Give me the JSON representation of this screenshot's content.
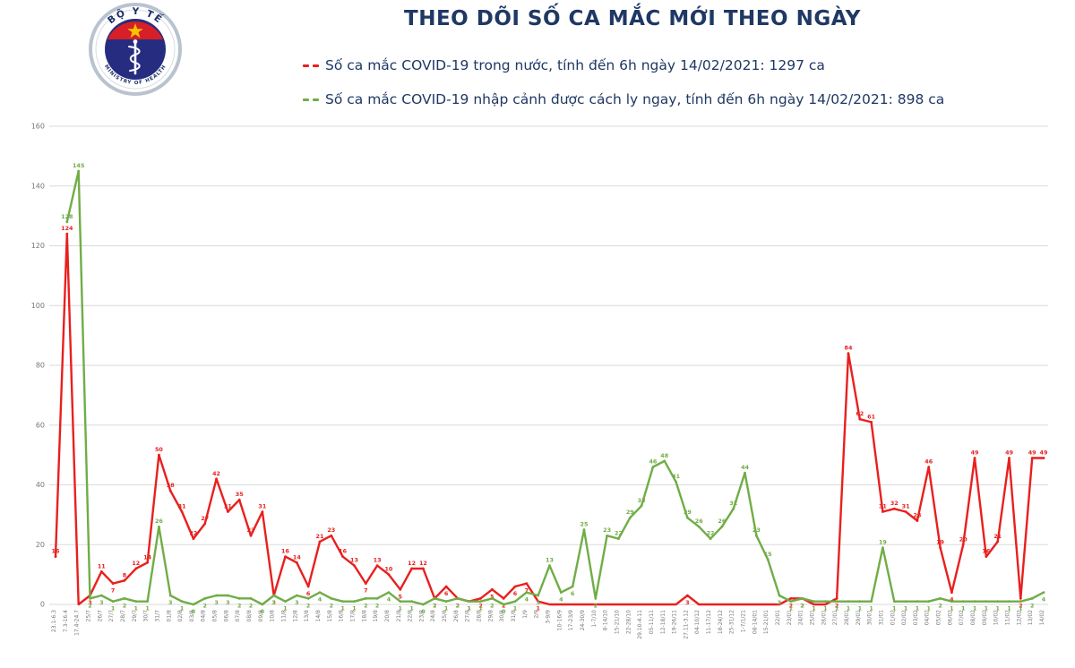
{
  "header": {
    "title": "THEO DÕI SỐ CA MẮC MỚI THEO NGÀY",
    "logo": {
      "top_text": "BỘ Y TẾ",
      "bottom_text": "MINISTRY OF HEALTH"
    }
  },
  "legend": {
    "items": [
      {
        "label": "Số ca mắc COVID-19 trong nước, tính đến 6h ngày 14/02/2021: 1297 ca",
        "color": "#e8201e"
      },
      {
        "label": "Số ca mắc COVID-19 nhập cảnh được cách ly ngay, tính đến 6h ngày 14/02/2021: 898 ca",
        "color": "#70ad47"
      }
    ]
  },
  "colors": {
    "title": "#1f3864",
    "domestic": "#e8201e",
    "imported": "#70ad47",
    "axis_text": "#767676",
    "grid": "#d9d9d9"
  },
  "chart_data": {
    "type": "line",
    "title": "THEO DÕI SỐ CA MẮC MỚI THEO NGÀY",
    "xlabel": "",
    "ylabel": "",
    "ylim": [
      0,
      160
    ],
    "ytick_step": 20,
    "grid": true,
    "legend_position": "top",
    "categories": [
      "23.1-6.3",
      "7.3-16.4",
      "17.4-24.7",
      "25/7",
      "26/7",
      "27/7",
      "28/7",
      "29/7",
      "30/7",
      "31/7",
      "01/8",
      "02/8",
      "03/8",
      "04/8",
      "05/8",
      "06/8",
      "07/8",
      "08/8",
      "09/8",
      "10/8",
      "11/8",
      "12/8",
      "13/8",
      "14/8",
      "15/8",
      "16/8",
      "17/8",
      "18/8",
      "19/8",
      "20/8",
      "21/8",
      "22/8",
      "23/8",
      "24/8",
      "25/8",
      "26/8",
      "27/8",
      "28/8",
      "29/8",
      "30/8",
      "31/8",
      "1/9",
      "2/9",
      "3-9/9",
      "10-16/9",
      "17-23/9",
      "24-30/9",
      "1-7/10",
      "8-14/10",
      "15-21/10",
      "22-28/10",
      "29.10-4.11",
      "05-11/11",
      "12-18/11",
      "19-26/11",
      "27.11-3.12",
      "04-10/12",
      "11-17/12",
      "18-24/12",
      "25-31/12",
      "1-7/1/21",
      "08-14/01",
      "15-21/01",
      "22/01",
      "23/01",
      "24/01",
      "25/01",
      "26/01",
      "27/01",
      "28/01",
      "29/01",
      "30/01",
      "31/01",
      "01/02",
      "02/02",
      "03/02",
      "04/02",
      "05/02",
      "06/02",
      "07/02",
      "08/02",
      "09/02",
      "10/02",
      "11/02",
      "12/02",
      "13/02",
      "14/02"
    ],
    "series": [
      {
        "name": "Số ca mắc COVID-19 trong nước",
        "color": "#e8201e",
        "values": [
          16,
          124,
          null,
          3,
          11,
          7,
          8,
          12,
          14,
          50,
          38,
          31,
          22,
          27,
          42,
          31,
          35,
          23,
          31,
          3,
          16,
          14,
          6,
          21,
          23,
          16,
          13,
          7,
          13,
          10,
          5,
          12,
          12,
          2,
          6,
          2,
          1,
          2,
          5,
          2,
          6,
          7,
          1,
          null,
          null,
          null,
          null,
          null,
          null,
          null,
          null,
          null,
          null,
          null,
          null,
          3,
          null,
          null,
          null,
          null,
          null,
          null,
          null,
          null,
          2,
          2,
          null,
          null,
          2,
          84,
          62,
          61,
          31,
          32,
          31,
          28,
          46,
          19,
          4,
          20,
          49,
          16,
          21,
          49,
          2,
          49,
          49
        ]
      },
      {
        "name": "Số ca mắc COVID-19 nhập cảnh được cách ly ngay",
        "color": "#70ad47",
        "values": [
          null,
          128,
          145,
          2,
          3,
          1,
          2,
          1,
          1,
          26,
          3,
          1,
          0,
          2,
          3,
          3,
          2,
          2,
          0,
          3,
          1,
          3,
          2,
          4,
          2,
          1,
          1,
          2,
          2,
          4,
          1,
          1,
          0,
          2,
          1,
          2,
          1,
          1,
          2,
          0,
          1,
          4,
          3,
          13,
          4,
          6,
          25,
          2,
          23,
          22,
          29,
          33,
          46,
          48,
          41,
          29,
          26,
          22,
          26,
          32,
          44,
          23,
          15,
          3,
          1,
          2,
          1,
          1,
          1,
          1,
          1,
          1,
          19,
          1,
          1,
          1,
          1,
          2,
          1,
          1,
          1,
          1,
          1,
          1,
          1,
          2,
          4
        ]
      }
    ]
  }
}
